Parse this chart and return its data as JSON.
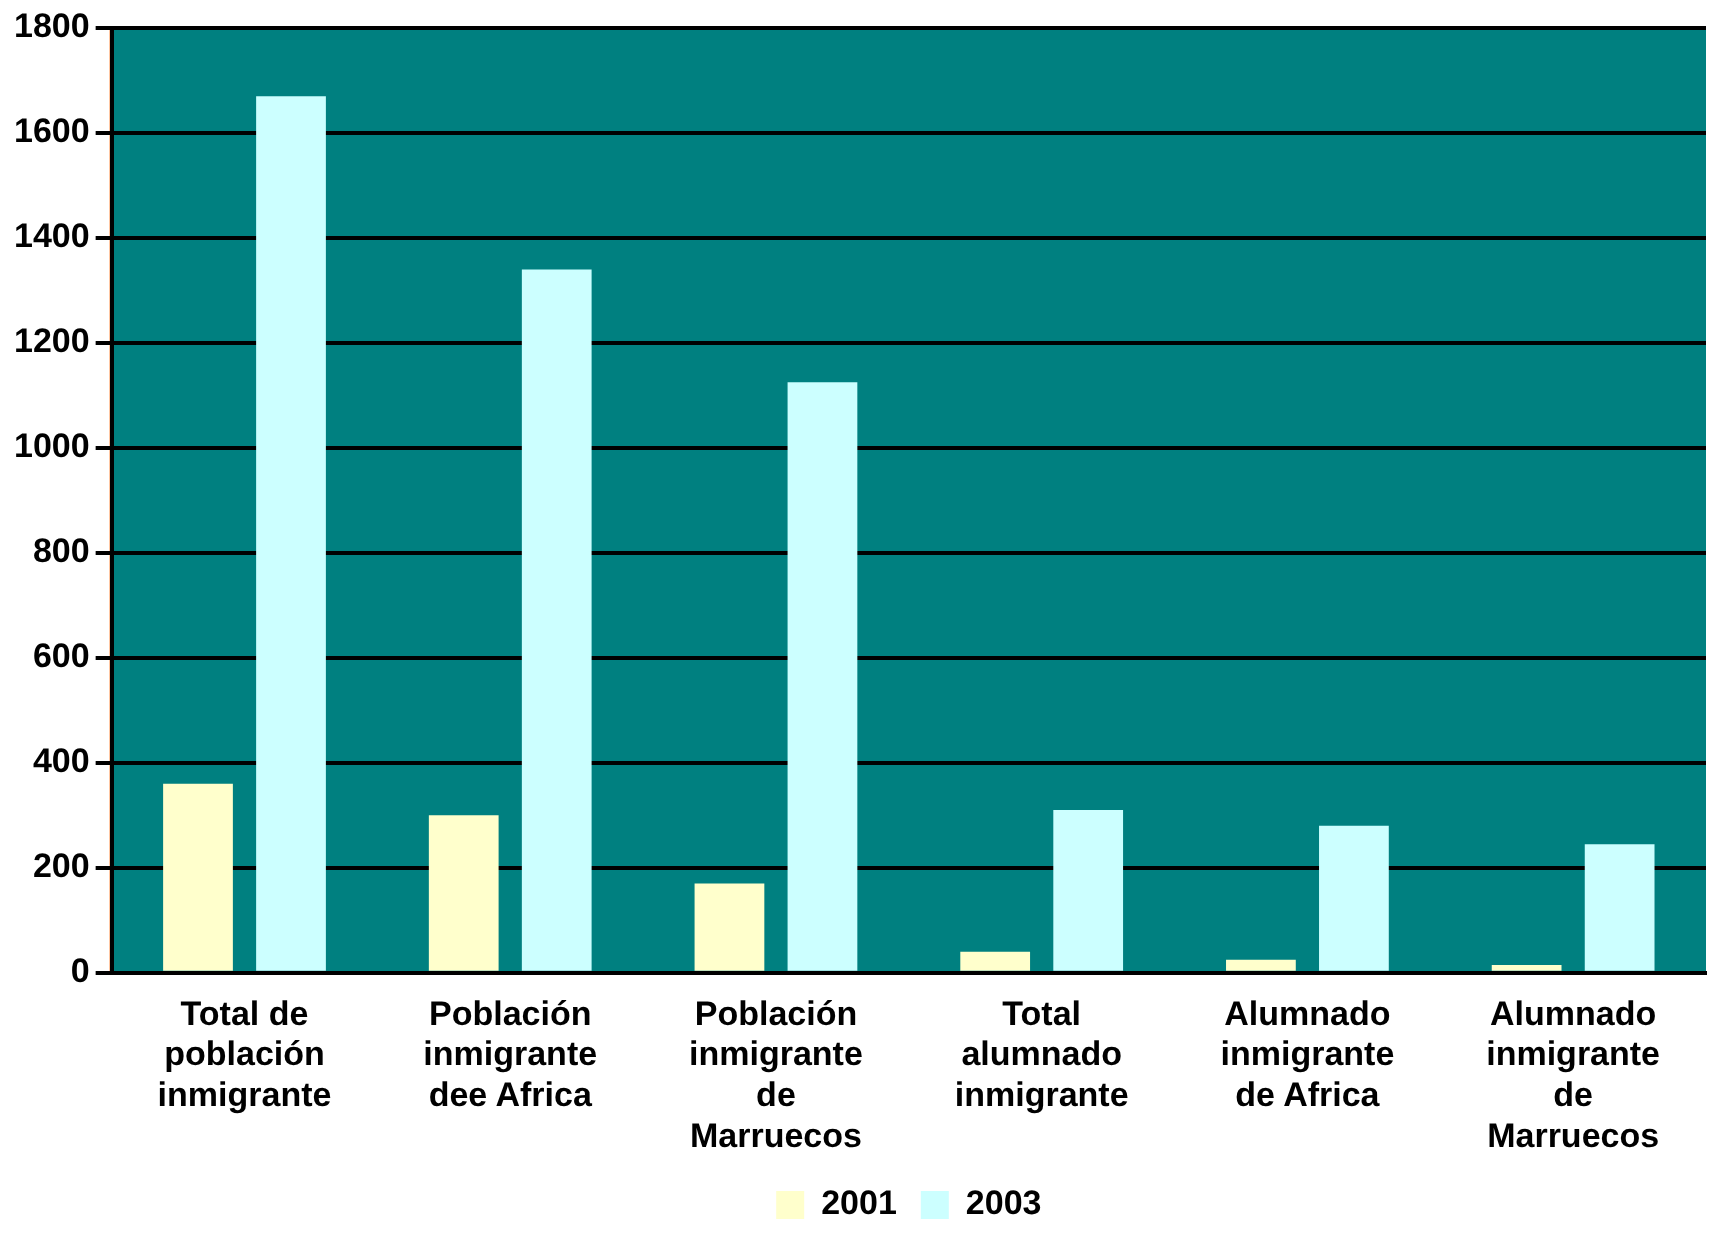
{
  "chart_data": {
    "type": "bar",
    "categories": [
      "Total de población inmigrante",
      "Población inmigrante dee Africa",
      "Población inmigrante de Marruecos",
      "Total alumnado inmigrante",
      "Alumnado inmigrante de Africa",
      "Alumnado inmigrante de Marruecos"
    ],
    "series": [
      {
        "name": "2001",
        "color": "#ffffcc",
        "values": [
          360,
          300,
          170,
          40,
          25,
          15
        ]
      },
      {
        "name": "2003",
        "color": "#ccffff",
        "values": [
          1670,
          1340,
          1125,
          310,
          280,
          245
        ]
      }
    ],
    "ylim": [
      0,
      1800
    ],
    "yticks": [
      0,
      200,
      400,
      600,
      800,
      1000,
      1200,
      1400,
      1600,
      1800
    ],
    "grid": "y",
    "legend": "bottom"
  }
}
